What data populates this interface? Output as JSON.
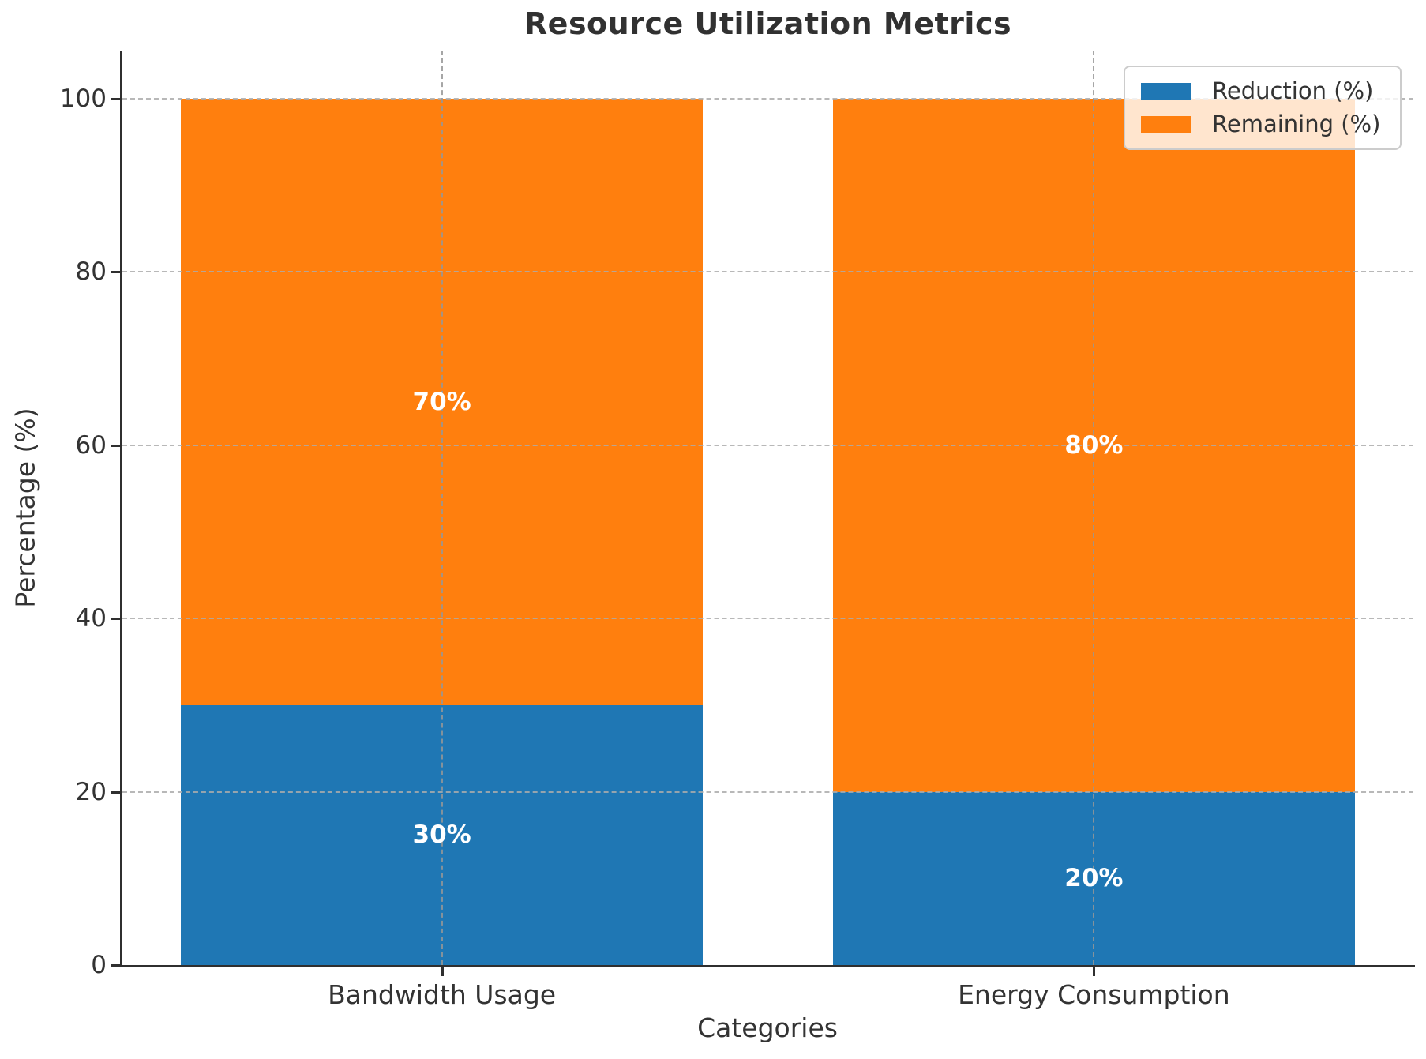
{
  "title": "Resource Utilization Metrics",
  "chart_data": {
    "type": "bar",
    "stacked": true,
    "title": "Resource Utilization Metrics",
    "xlabel": "Categories",
    "ylabel": "Percentage (%)",
    "categories": [
      "Bandwidth Usage",
      "Energy Consumption"
    ],
    "series": [
      {
        "name": "Reduction (%)",
        "color": "#1f77b4",
        "values": [
          30,
          20
        ]
      },
      {
        "name": "Remaining (%)",
        "color": "#ff7f0e",
        "values": [
          70,
          80
        ]
      }
    ],
    "bar_segment_labels": [
      [
        "30%",
        "70%"
      ],
      [
        "20%",
        "80%"
      ]
    ],
    "ylim": [
      0,
      105
    ],
    "yticks": [
      0,
      20,
      40,
      60,
      80,
      100
    ],
    "grid": "dashed, both axes, drawn over bars",
    "legend_position": "upper right",
    "legend_items": [
      {
        "label": "Reduction (%)",
        "color": "#1f77b4"
      },
      {
        "label": "Remaining (%)",
        "color": "#ff7f0e"
      }
    ],
    "background_color": "#ffffff",
    "text_color": "#333333"
  }
}
